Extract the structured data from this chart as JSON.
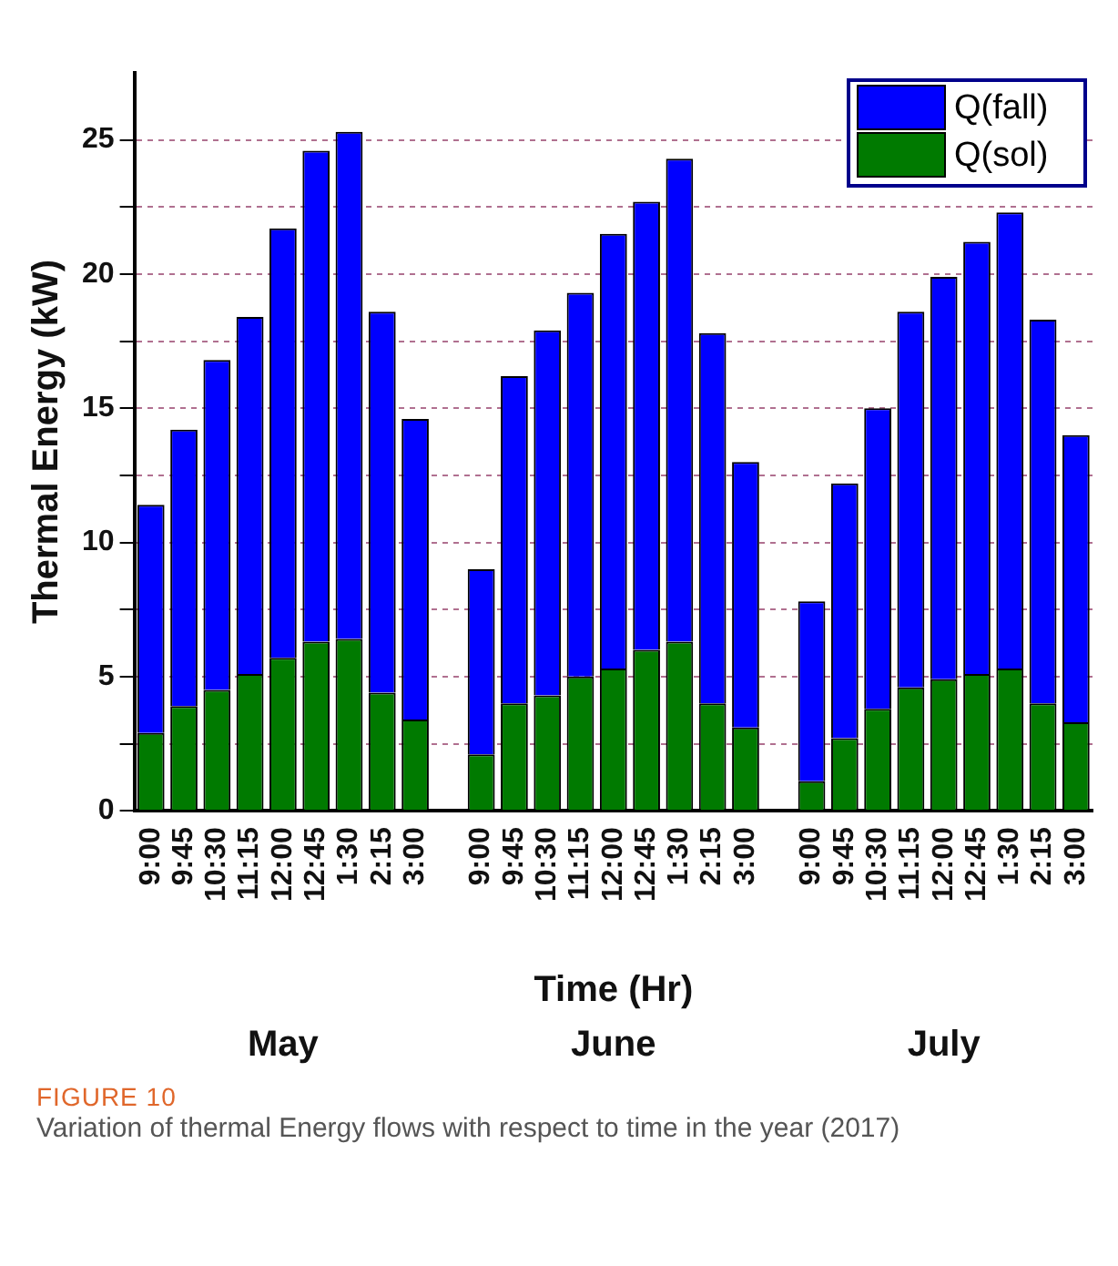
{
  "chart_data": {
    "type": "bar",
    "stacked": true,
    "xlabel": "Time (Hr)",
    "ylabel": "Thermal Energy (kW)",
    "categories": [
      "9:00",
      "9:45",
      "10:30",
      "11:15",
      "12:00",
      "12:45",
      "1:30",
      "2:15",
      "3:00",
      null,
      "9:00",
      "9:45",
      "10:30",
      "11:15",
      "12:00",
      "12:45",
      "1:30",
      "2:15",
      "3:00",
      null,
      "9:00",
      "9:45",
      "10:30",
      "11:15",
      "12:00",
      "12:45",
      "1:30",
      "2:15",
      "3:00"
    ],
    "series": [
      {
        "name": "Q(sol)",
        "color": "#007a00",
        "values": [
          2.9,
          3.9,
          4.5,
          5.1,
          5.7,
          6.3,
          6.4,
          4.4,
          3.4,
          null,
          2.1,
          4.0,
          4.3,
          5.0,
          5.3,
          6.0,
          6.3,
          4.0,
          3.1,
          null,
          1.1,
          2.7,
          3.8,
          4.6,
          4.9,
          5.1,
          5.3,
          4.0,
          3.3
        ]
      },
      {
        "name": "Q(fall)",
        "color": "#0000ff",
        "values": [
          8.5,
          10.3,
          12.3,
          13.3,
          16.0,
          18.3,
          18.9,
          14.2,
          11.2,
          null,
          6.9,
          12.2,
          13.6,
          14.3,
          16.2,
          16.7,
          18.0,
          13.8,
          9.9,
          null,
          6.7,
          9.5,
          11.2,
          14.0,
          15.0,
          16.1,
          17.0,
          14.3,
          10.7
        ]
      }
    ],
    "ylim": [
      0,
      27.5
    ],
    "yticks": [
      0,
      {
        "value": 2.5,
        "label": null
      },
      5,
      {
        "value": 7.5,
        "label": null
      },
      10,
      {
        "value": 12.5,
        "label": null
      },
      15,
      {
        "value": 17.5,
        "label": null
      },
      20,
      {
        "value": 22.5,
        "label": null
      },
      25
    ],
    "grid": "y",
    "legend": "top right",
    "annotations": [
      "May",
      "June",
      "July",
      "FIGURE 10",
      "Variation of thermal Energy flows with respect to time in the year (2017)"
    ]
  }
}
